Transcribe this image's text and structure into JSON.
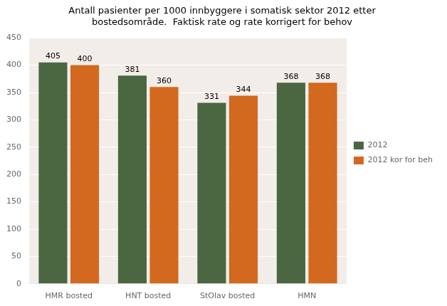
{
  "chart_data": {
    "type": "bar",
    "title": "Antall pasienter per 1000 innbyggere i somatisk sektor 2012 etter\nbostedsområde.  Faktisk rate og rate korrigert for behov",
    "categories": [
      "HMR bosted",
      "HNT bosted",
      "StOlav bosted",
      "HMN"
    ],
    "series": [
      {
        "name": "2012",
        "color": "#4a6741",
        "values": [
          405,
          381,
          331,
          368
        ]
      },
      {
        "name": "2012 kor for beh",
        "color": "#d2691e",
        "values": [
          400,
          360,
          344,
          368
        ]
      }
    ],
    "ylim": [
      0,
      450
    ],
    "yticks": [
      0,
      50,
      100,
      150,
      200,
      250,
      300,
      350,
      400,
      450
    ],
    "grid": true,
    "legend": "right",
    "data_labels": true
  }
}
